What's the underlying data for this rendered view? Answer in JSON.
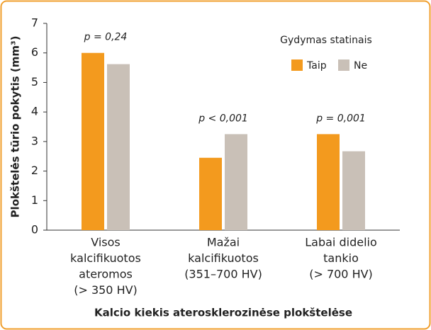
{
  "chart_data": {
    "type": "bar",
    "y_label": "Plokštelės tūrio pokytis (mm³)",
    "x_label": "Kalcio kiekis aterosklerozinėse plokštelėse",
    "categories": [
      [
        "Visos",
        "kalcifikuotos",
        "ateromos",
        "(> 350 HV)"
      ],
      [
        "Mažai",
        "kalcifikuotos",
        "(351–700 HV)"
      ],
      [
        "Labai didelio",
        "tankio",
        "(> 700 HV)"
      ]
    ],
    "annotations": [
      "p = 0,24",
      "p < 0,001",
      "p = 0,001"
    ],
    "legend_title": "Gydymas statinais",
    "series": [
      {
        "name": "Taip",
        "color": "#f39a1e",
        "values": [
          6.0,
          2.45,
          3.25
        ]
      },
      {
        "name": "Ne",
        "color": "#c9c0b7",
        "values": [
          5.62,
          3.25,
          2.67
        ]
      }
    ],
    "ylim": [
      0,
      7
    ],
    "yticks": [
      0,
      1,
      2,
      3,
      4,
      5,
      6,
      7
    ]
  }
}
